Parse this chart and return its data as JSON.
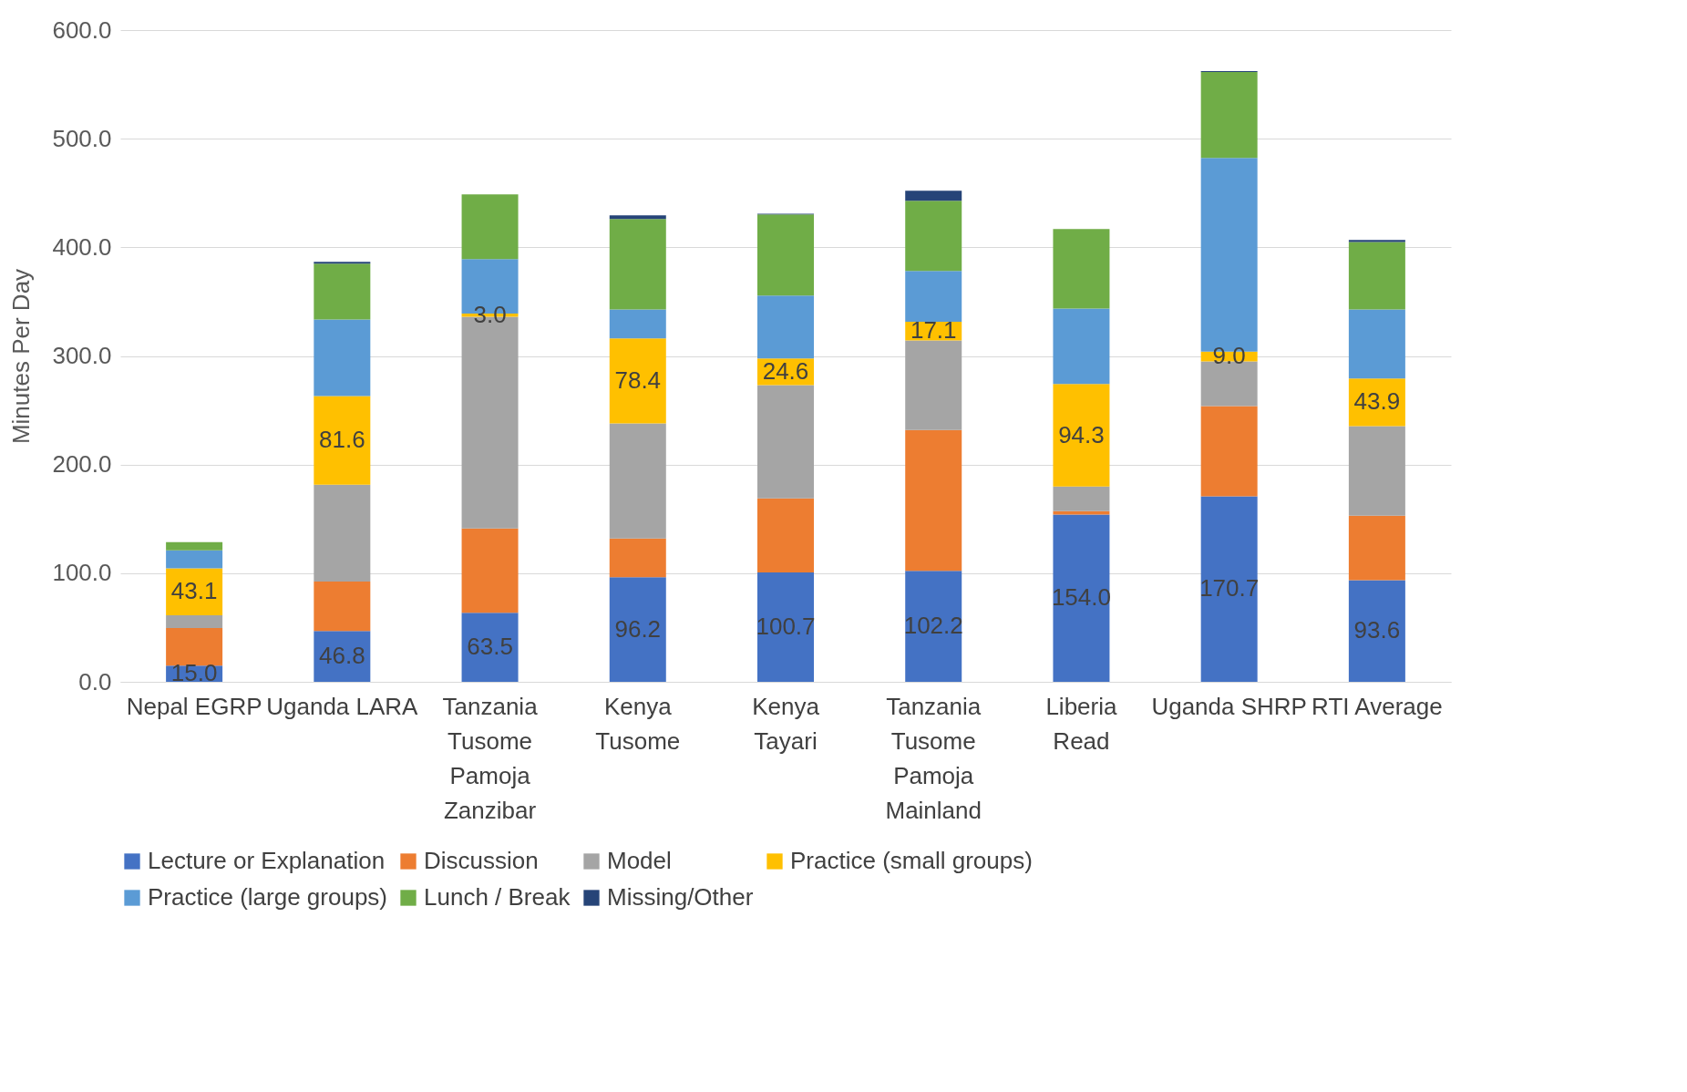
{
  "chart_data": {
    "type": "bar",
    "stacked": true,
    "ylabel": "Minutes Per Day",
    "categories": [
      "Nepal EGRP",
      "Uganda LARA",
      "Tanzania Tusome Pamoja Zanzibar",
      "Kenya Tusome",
      "Kenya Tayari",
      "Tanzania Tusome Pamoja Mainland",
      "Liberia Read",
      "Uganda SHRP",
      "RTI Average"
    ],
    "series": [
      {
        "name": "Lecture or Explanation",
        "color": "#4472c4",
        "values": [
          15.0,
          46.8,
          63.5,
          96.2,
          100.7,
          102.2,
          154.0,
          170.7,
          93.6
        ],
        "value_labels": [
          "15.0",
          "46.8",
          "63.5",
          "96.2",
          "100.7",
          "102.2",
          "154.0",
          "170.7",
          "93.6"
        ]
      },
      {
        "name": "Discussion",
        "color": "#ed7d31",
        "values": [
          34.6,
          45.6,
          77.7,
          35.7,
          68.2,
          129.7,
          3.1,
          83.1,
          59.3
        ]
      },
      {
        "name": "Model",
        "color": "#a5a5a5",
        "values": [
          11.7,
          89.1,
          194.9,
          105.9,
          104.2,
          82.4,
          22.7,
          41.2,
          82.4
        ]
      },
      {
        "name": "Practice (small groups)",
        "color": "#ffc000",
        "values": [
          43.1,
          81.6,
          3.0,
          78.4,
          24.6,
          17.1,
          94.3,
          9.0,
          43.9
        ],
        "value_labels": [
          "43.1",
          "81.6",
          "3.0",
          "78.4",
          "24.6",
          "17.1",
          "94.3",
          "9.0",
          "43.9"
        ]
      },
      {
        "name": "Practice (large groups)",
        "color": "#5b9bd5",
        "values": [
          16.6,
          70.5,
          50.0,
          26.7,
          57.8,
          46.8,
          69.6,
          178.4,
          63.7
        ]
      },
      {
        "name": "Lunch / Break",
        "color": "#70ad47",
        "values": [
          7.6,
          51.3,
          59.6,
          83.1,
          74.8,
          64.7,
          73.1,
          78.9,
          62.1
        ]
      },
      {
        "name": "Missing/Other",
        "color": "#264478",
        "values": [
          0,
          1.7,
          0,
          3.4,
          0.7,
          9.2,
          0,
          0.9,
          1.7
        ]
      }
    ],
    "ylim": [
      0,
      600
    ],
    "yticks": [
      {
        "value": 0,
        "label": "0.0"
      },
      {
        "value": 100,
        "label": "100.0"
      },
      {
        "value": 200,
        "label": "200.0"
      },
      {
        "value": 300,
        "label": "300.0"
      },
      {
        "value": 400,
        "label": "400.0"
      },
      {
        "value": 500,
        "label": "500.0"
      },
      {
        "value": 600,
        "label": "600.0"
      }
    ],
    "grid": "y",
    "legend": "bottom"
  }
}
